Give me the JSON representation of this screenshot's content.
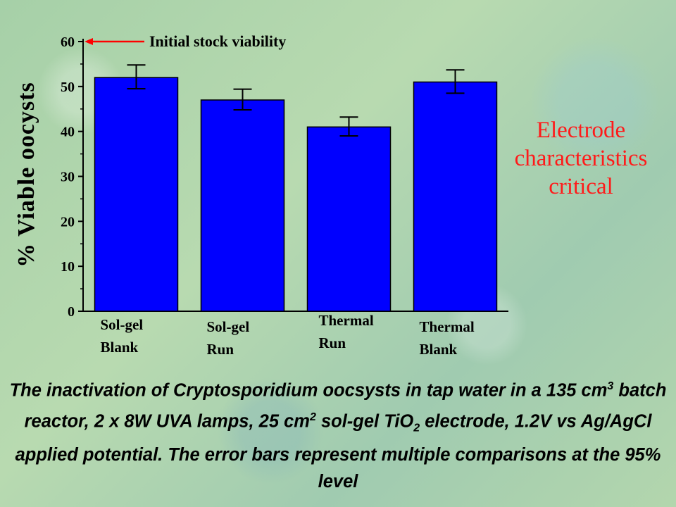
{
  "chart_data": {
    "type": "bar",
    "ylabel": "% Viable oocysts",
    "ylim": [
      0,
      60
    ],
    "yticks": [
      0,
      10,
      20,
      30,
      40,
      50,
      60
    ],
    "categories": [
      [
        "Sol-gel",
        "Blank"
      ],
      [
        "Sol-gel",
        "Run"
      ],
      [
        "Thermal",
        "Run"
      ],
      [
        "Thermal",
        "Blank"
      ]
    ],
    "values": [
      52,
      47,
      41,
      51
    ],
    "error": [
      [
        49.5,
        54.8
      ],
      [
        44.8,
        49.4
      ],
      [
        39.0,
        43.2
      ],
      [
        48.5,
        53.7
      ]
    ],
    "bar_color": "#0000ff",
    "annotation": {
      "text": "Initial stock viability",
      "y": 60,
      "color": "#ff0000"
    },
    "grid": false
  },
  "side_note": [
    "Electrode",
    "characteristics",
    "critical"
  ],
  "caption": {
    "p1": "The inactivation of Cryptosporidium oocsysts in tap water in a 135 cm",
    "s1": "3",
    "p2": " batch reactor, 2 x 8W UVA lamps, 25 cm",
    "s2": "2",
    "p3": " sol-gel TiO",
    "s3": "2",
    "p4": " electrode, 1.2V vs Ag/AgCl applied potential.  The error bars represent multiple comparisons at the 95% level"
  }
}
